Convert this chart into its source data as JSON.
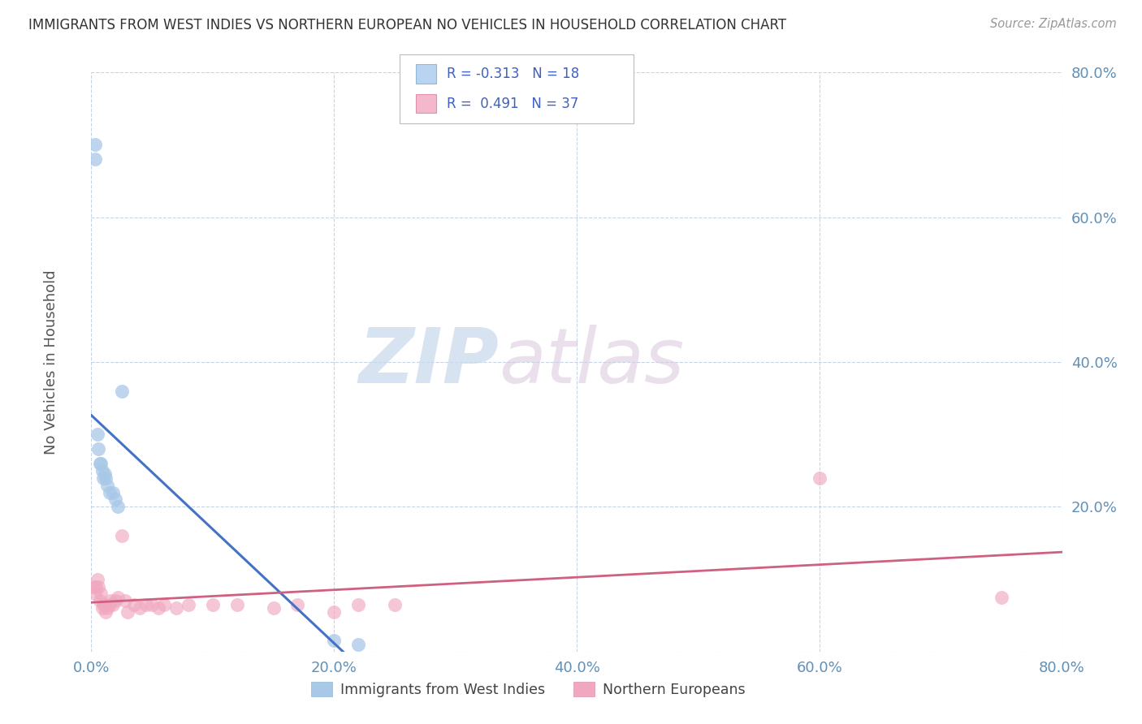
{
  "title": "IMMIGRANTS FROM WEST INDIES VS NORTHERN EUROPEAN NO VEHICLES IN HOUSEHOLD CORRELATION CHART",
  "source": "Source: ZipAtlas.com",
  "ylabel": "No Vehicles in Household",
  "xlabel": "",
  "xlim": [
    0.0,
    0.8
  ],
  "ylim": [
    0.0,
    0.8
  ],
  "yticks": [
    0.0,
    0.2,
    0.4,
    0.6,
    0.8
  ],
  "xticks": [
    0.0,
    0.2,
    0.4,
    0.6,
    0.8
  ],
  "ytick_labels": [
    "",
    "20.0%",
    "40.0%",
    "60.0%",
    "80.0%"
  ],
  "xtick_labels": [
    "0.0%",
    "20.0%",
    "40.0%",
    "60.0%",
    "80.0%"
  ],
  "series1_name": "Immigrants from West Indies",
  "series2_name": "Northern Europeans",
  "series1_color": "#a8c8e8",
  "series2_color": "#f0a8c0",
  "series1_line_color": "#4472c4",
  "series2_line_color": "#d06080",
  "legend_sq1_color": "#b8d4f0",
  "legend_sq2_color": "#f4b8cc",
  "watermark_zip": "ZIP",
  "watermark_atlas": "atlas",
  "background_color": "#ffffff",
  "grid_color": "#c0d0e0",
  "west_indies_x": [
    0.003,
    0.003,
    0.005,
    0.006,
    0.007,
    0.008,
    0.009,
    0.01,
    0.011,
    0.012,
    0.013,
    0.015,
    0.018,
    0.02,
    0.022,
    0.025,
    0.2,
    0.22
  ],
  "west_indies_y": [
    0.7,
    0.68,
    0.3,
    0.28,
    0.26,
    0.26,
    0.25,
    0.24,
    0.245,
    0.24,
    0.23,
    0.22,
    0.22,
    0.21,
    0.2,
    0.36,
    0.015,
    0.01
  ],
  "northern_euros_x": [
    0.002,
    0.003,
    0.004,
    0.005,
    0.006,
    0.007,
    0.008,
    0.009,
    0.01,
    0.011,
    0.012,
    0.013,
    0.015,
    0.016,
    0.018,
    0.02,
    0.022,
    0.025,
    0.028,
    0.03,
    0.035,
    0.04,
    0.045,
    0.05,
    0.055,
    0.06,
    0.07,
    0.08,
    0.1,
    0.12,
    0.15,
    0.17,
    0.2,
    0.22,
    0.25,
    0.6,
    0.75
  ],
  "northern_euros_y": [
    0.09,
    0.08,
    0.09,
    0.1,
    0.09,
    0.07,
    0.08,
    0.06,
    0.065,
    0.065,
    0.055,
    0.06,
    0.065,
    0.07,
    0.065,
    0.07,
    0.075,
    0.16,
    0.07,
    0.055,
    0.065,
    0.06,
    0.065,
    0.065,
    0.06,
    0.065,
    0.06,
    0.065,
    0.065,
    0.065,
    0.06,
    0.065,
    0.055,
    0.065,
    0.065,
    0.24,
    0.075
  ]
}
